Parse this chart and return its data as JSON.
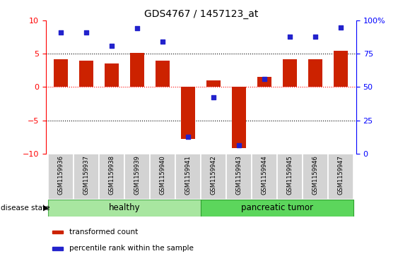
{
  "title": "GDS4767 / 1457123_at",
  "samples": [
    "GSM1159936",
    "GSM1159937",
    "GSM1159938",
    "GSM1159939",
    "GSM1159940",
    "GSM1159941",
    "GSM1159942",
    "GSM1159943",
    "GSM1159944",
    "GSM1159945",
    "GSM1159946",
    "GSM1159947"
  ],
  "bar_values": [
    4.2,
    4.0,
    3.5,
    5.1,
    4.0,
    -7.8,
    1.0,
    -9.2,
    1.5,
    4.2,
    4.2,
    5.4
  ],
  "blue_values": [
    8.2,
    8.2,
    6.2,
    8.8,
    6.8,
    -7.5,
    -1.5,
    -8.8,
    1.2,
    7.6,
    7.6,
    8.9
  ],
  "bar_color": "#CC2200",
  "blue_color": "#2222CC",
  "healthy_group": [
    0,
    1,
    2,
    3,
    4,
    5
  ],
  "tumor_group": [
    6,
    7,
    8,
    9,
    10,
    11
  ],
  "healthy_label": "healthy",
  "tumor_label": "pancreatic tumor",
  "disease_state_label": "disease state",
  "legend_bar": "transformed count",
  "legend_blue": "percentile rank within the sample",
  "ylim_left": [
    -10,
    10
  ],
  "ylim_right": [
    0,
    100
  ],
  "yticks_left": [
    -10,
    -5,
    0,
    5,
    10
  ],
  "yticks_right": [
    0,
    25,
    50,
    75,
    100
  ],
  "hlines": [
    5.0,
    0.0,
    -5.0
  ],
  "hline_colors": [
    "black",
    "red",
    "black"
  ],
  "hline_styles": [
    "dotted",
    "dotted",
    "dotted"
  ],
  "healthy_color": "#A8E6A0",
  "tumor_color": "#5CD65C",
  "bar_width": 0.55
}
